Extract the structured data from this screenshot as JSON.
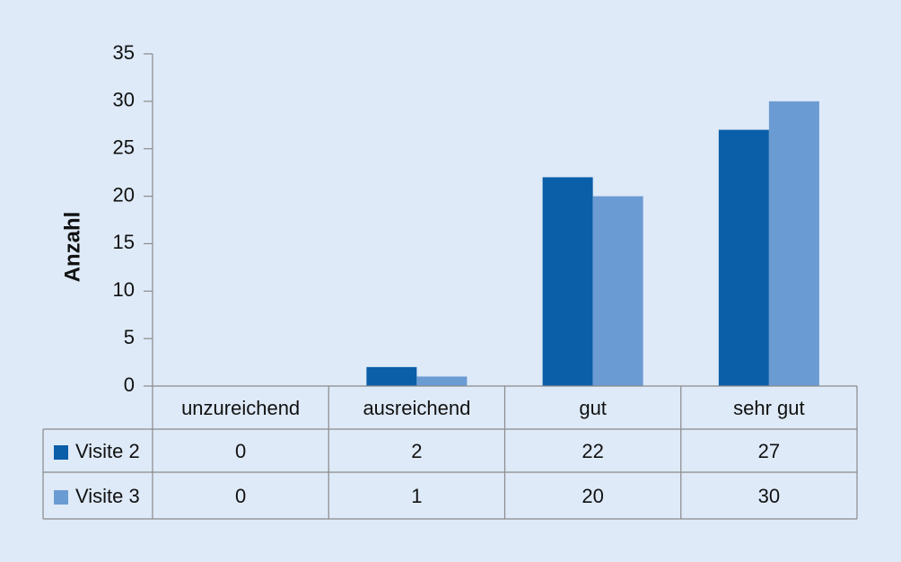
{
  "chart_data": {
    "type": "bar",
    "y_label": "Anzahl",
    "categories": [
      "unzureichend",
      "ausreichend",
      "gut",
      "sehr gut"
    ],
    "series": [
      {
        "name": "Visite 2",
        "color": "#0b5ea8",
        "values": [
          0,
          2,
          22,
          27
        ]
      },
      {
        "name": "Visite 3",
        "color": "#6b9bd3",
        "values": [
          0,
          1,
          20,
          30
        ]
      }
    ],
    "ylim": [
      0,
      35
    ],
    "yticks": [
      0,
      5,
      10,
      15,
      20,
      25,
      30,
      35
    ],
    "grid": false,
    "data_table": true
  }
}
